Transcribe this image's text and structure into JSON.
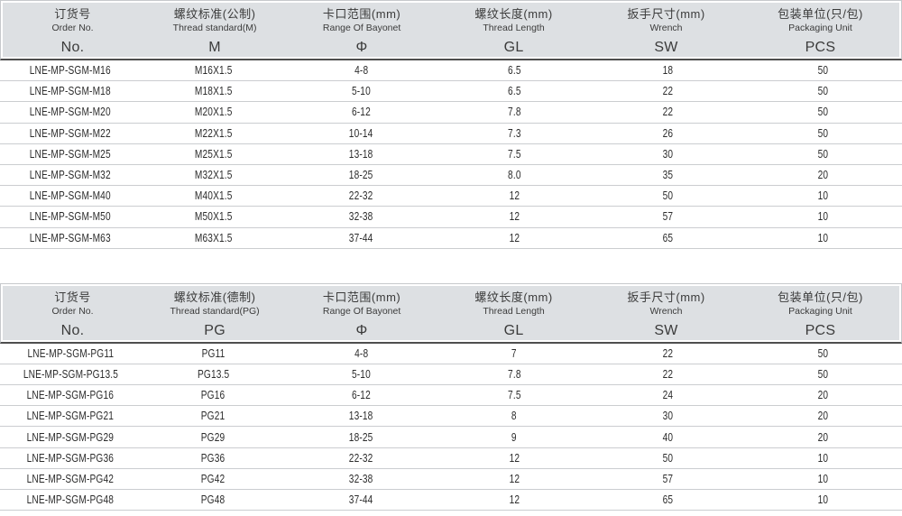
{
  "colors": {
    "header_background": "#dde0e3",
    "header_outer_border": "#c6c9cc",
    "header_dark_underline": "#4e4e4e",
    "row_separator": "#cbcdd0",
    "text": "#2c2c2c",
    "page_background": "#ffffff"
  },
  "tables": [
    {
      "name": "metric-thread-table",
      "columns": [
        {
          "key": "order-no",
          "zh": "订货号",
          "en": "Order No.",
          "symbol": "No."
        },
        {
          "key": "thread-standard",
          "zh": "螺纹标准(公制)",
          "en": "Thread standard(M)",
          "symbol": "M"
        },
        {
          "key": "bayonet-range",
          "zh": "卡口范围(mm)",
          "en": "Range Of Bayonet",
          "symbol": "Φ"
        },
        {
          "key": "thread-length",
          "zh": "螺纹长度(mm)",
          "en": "Thread Length",
          "symbol": "GL"
        },
        {
          "key": "wrench-size",
          "zh": "扳手尺寸(mm)",
          "en": "Wrench",
          "symbol": "SW"
        },
        {
          "key": "packaging-unit",
          "zh": "包装单位(只/包)",
          "en": "Packaging Unit",
          "symbol": "PCS"
        }
      ],
      "rows": [
        [
          "LNE-MP-SGM-M16",
          "M16X1.5",
          "4-8",
          "6.5",
          "18",
          "50"
        ],
        [
          "LNE-MP-SGM-M18",
          "M18X1.5",
          "5-10",
          "6.5",
          "22",
          "50"
        ],
        [
          "LNE-MP-SGM-M20",
          "M20X1.5",
          "6-12",
          "7.8",
          "22",
          "50"
        ],
        [
          "LNE-MP-SGM-M22",
          "M22X1.5",
          "10-14",
          "7.3",
          "26",
          "50"
        ],
        [
          "LNE-MP-SGM-M25",
          "M25X1.5",
          "13-18",
          "7.5",
          "30",
          "50"
        ],
        [
          "LNE-MP-SGM-M32",
          "M32X1.5",
          "18-25",
          "8.0",
          "35",
          "20"
        ],
        [
          "LNE-MP-SGM-M40",
          "M40X1.5",
          "22-32",
          "12",
          "50",
          "10"
        ],
        [
          "LNE-MP-SGM-M50",
          "M50X1.5",
          "32-38",
          "12",
          "57",
          "10"
        ],
        [
          "LNE-MP-SGM-M63",
          "M63X1.5",
          "37-44",
          "12",
          "65",
          "10"
        ]
      ]
    },
    {
      "name": "pg-thread-table",
      "columns": [
        {
          "key": "order-no",
          "zh": "订货号",
          "en": "Order No.",
          "symbol": "No."
        },
        {
          "key": "thread-standard",
          "zh": "螺纹标准(德制)",
          "en": "Thread standard(PG)",
          "symbol": "PG"
        },
        {
          "key": "bayonet-range",
          "zh": "卡口范围(mm)",
          "en": "Range Of Bayonet",
          "symbol": "Φ"
        },
        {
          "key": "thread-length",
          "zh": "螺纹长度(mm)",
          "en": "Thread Length",
          "symbol": "GL"
        },
        {
          "key": "wrench-size",
          "zh": "扳手尺寸(mm)",
          "en": "Wrench",
          "symbol": "SW"
        },
        {
          "key": "packaging-unit",
          "zh": "包装单位(只/包)",
          "en": "Packaging Unit",
          "symbol": "PCS"
        }
      ],
      "rows": [
        [
          "LNE-MP-SGM-PG11",
          "PG11",
          "4-8",
          "7",
          "22",
          "50"
        ],
        [
          "LNE-MP-SGM-PG13.5",
          "PG13.5",
          "5-10",
          "7.8",
          "22",
          "50"
        ],
        [
          "LNE-MP-SGM-PG16",
          "PG16",
          "6-12",
          "7.5",
          "24",
          "20"
        ],
        [
          "LNE-MP-SGM-PG21",
          "PG21",
          "13-18",
          "8",
          "30",
          "20"
        ],
        [
          "LNE-MP-SGM-PG29",
          "PG29",
          "18-25",
          "9",
          "40",
          "20"
        ],
        [
          "LNE-MP-SGM-PG36",
          "PG36",
          "22-32",
          "12",
          "50",
          "10"
        ],
        [
          "LNE-MP-SGM-PG42",
          "PG42",
          "32-38",
          "12",
          "57",
          "10"
        ],
        [
          "LNE-MP-SGM-PG48",
          "PG48",
          "37-44",
          "12",
          "65",
          "10"
        ]
      ]
    }
  ]
}
